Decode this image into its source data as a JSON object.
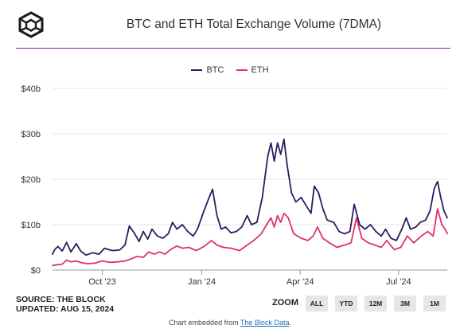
{
  "header": {
    "title": "BTC and ETH Total Exchange Volume (7DMA)",
    "logo_icon": "the-block-cube-logo"
  },
  "legend": {
    "items": [
      {
        "label": "BTC",
        "color": "#2d1b5e"
      },
      {
        "label": "ETH",
        "color": "#e0306e"
      }
    ]
  },
  "source": {
    "line1": "SOURCE: THE BLOCK",
    "line2": "UPDATED: AUG 15, 2024"
  },
  "zoom": {
    "label": "ZOOM",
    "buttons": [
      "ALL",
      "YTD",
      "12M",
      "3M",
      "1M"
    ]
  },
  "footer": {
    "prefix": "Chart embedded from ",
    "link": "The Block Data",
    "suffix": "."
  },
  "chart_data": {
    "type": "line",
    "title": "BTC and ETH Total Exchange Volume (7DMA)",
    "y_tick_labels": [
      "$0",
      "$10b",
      "$20b",
      "$30b",
      "$40b"
    ],
    "x_tick_labels": [
      "Oct '23",
      "Jan '24",
      "Apr '24",
      "Jul '24"
    ],
    "ylim": [
      0,
      40
    ],
    "grid": true,
    "legend_position": "top-center",
    "x_range": [
      "2023-08-16",
      "2024-08-15"
    ],
    "x_ticks": [
      "2023-10-01",
      "2024-01-01",
      "2024-04-01",
      "2024-07-01"
    ],
    "units": "billion USD",
    "series": [
      {
        "name": "BTC",
        "color": "#2d1b5e",
        "points": [
          [
            "2023-08-16",
            3.5
          ],
          [
            "2023-08-18",
            4.5
          ],
          [
            "2023-08-21",
            5.2
          ],
          [
            "2023-08-25",
            4.2
          ],
          [
            "2023-08-29",
            6.1
          ],
          [
            "2023-09-02",
            4.0
          ],
          [
            "2023-09-07",
            5.8
          ],
          [
            "2023-09-11",
            4.2
          ],
          [
            "2023-09-16",
            3.3
          ],
          [
            "2023-09-22",
            3.8
          ],
          [
            "2023-09-28",
            3.5
          ],
          [
            "2023-10-03",
            4.8
          ],
          [
            "2023-10-10",
            4.3
          ],
          [
            "2023-10-17",
            4.4
          ],
          [
            "2023-10-22",
            5.5
          ],
          [
            "2023-10-26",
            9.7
          ],
          [
            "2023-10-31",
            8.0
          ],
          [
            "2023-11-04",
            6.3
          ],
          [
            "2023-11-08",
            8.5
          ],
          [
            "2023-11-12",
            6.8
          ],
          [
            "2023-11-16",
            9.0
          ],
          [
            "2023-11-21",
            7.5
          ],
          [
            "2023-11-26",
            7.0
          ],
          [
            "2023-12-01",
            8.0
          ],
          [
            "2023-12-05",
            10.5
          ],
          [
            "2023-12-09",
            9.0
          ],
          [
            "2023-12-14",
            10.0
          ],
          [
            "2023-12-19",
            8.5
          ],
          [
            "2023-12-24",
            7.5
          ],
          [
            "2023-12-28",
            9.0
          ],
          [
            "2024-01-03",
            13.0
          ],
          [
            "2024-01-07",
            15.5
          ],
          [
            "2024-01-11",
            17.8
          ],
          [
            "2024-01-15",
            12.0
          ],
          [
            "2024-01-19",
            9.0
          ],
          [
            "2024-01-23",
            9.5
          ],
          [
            "2024-01-28",
            8.2
          ],
          [
            "2024-02-02",
            8.5
          ],
          [
            "2024-02-07",
            9.5
          ],
          [
            "2024-02-12",
            12.0
          ],
          [
            "2024-02-16",
            10.0
          ],
          [
            "2024-02-21",
            10.5
          ],
          [
            "2024-02-26",
            16.0
          ],
          [
            "2024-03-02",
            25.0
          ],
          [
            "2024-03-05",
            28.0
          ],
          [
            "2024-03-08",
            24.0
          ],
          [
            "2024-03-11",
            28.0
          ],
          [
            "2024-03-14",
            25.5
          ],
          [
            "2024-03-17",
            28.8
          ],
          [
            "2024-03-20",
            23.0
          ],
          [
            "2024-03-24",
            17.0
          ],
          [
            "2024-03-28",
            15.0
          ],
          [
            "2024-04-02",
            16.0
          ],
          [
            "2024-04-07",
            14.0
          ],
          [
            "2024-04-11",
            12.5
          ],
          [
            "2024-04-14",
            18.5
          ],
          [
            "2024-04-18",
            17.0
          ],
          [
            "2024-04-22",
            13.5
          ],
          [
            "2024-04-26",
            11.0
          ],
          [
            "2024-05-02",
            10.5
          ],
          [
            "2024-05-07",
            8.5
          ],
          [
            "2024-05-12",
            8.0
          ],
          [
            "2024-05-17",
            8.5
          ],
          [
            "2024-05-21",
            14.5
          ],
          [
            "2024-05-26",
            10.0
          ],
          [
            "2024-05-31",
            9.0
          ],
          [
            "2024-06-05",
            10.0
          ],
          [
            "2024-06-10",
            8.5
          ],
          [
            "2024-06-15",
            7.5
          ],
          [
            "2024-06-19",
            9.0
          ],
          [
            "2024-06-24",
            7.0
          ],
          [
            "2024-06-29",
            6.5
          ],
          [
            "2024-07-04",
            9.0
          ],
          [
            "2024-07-08",
            11.5
          ],
          [
            "2024-07-12",
            9.0
          ],
          [
            "2024-07-17",
            9.5
          ],
          [
            "2024-07-21",
            10.5
          ],
          [
            "2024-07-26",
            11.0
          ],
          [
            "2024-07-30",
            13.0
          ],
          [
            "2024-08-03",
            18.0
          ],
          [
            "2024-08-06",
            19.5
          ],
          [
            "2024-08-09",
            16.0
          ],
          [
            "2024-08-12",
            13.0
          ],
          [
            "2024-08-15",
            11.5
          ]
        ]
      },
      {
        "name": "ETH",
        "color": "#e0306e",
        "points": [
          [
            "2023-08-16",
            1.0
          ],
          [
            "2023-08-21",
            1.2
          ],
          [
            "2023-08-25",
            1.3
          ],
          [
            "2023-08-29",
            2.2
          ],
          [
            "2023-09-02",
            1.8
          ],
          [
            "2023-09-07",
            2.0
          ],
          [
            "2023-09-12",
            1.6
          ],
          [
            "2023-09-18",
            1.4
          ],
          [
            "2023-09-24",
            1.5
          ],
          [
            "2023-10-01",
            2.0
          ],
          [
            "2023-10-08",
            1.7
          ],
          [
            "2023-10-15",
            1.8
          ],
          [
            "2023-10-22",
            2.0
          ],
          [
            "2023-10-28",
            2.5
          ],
          [
            "2023-11-02",
            3.0
          ],
          [
            "2023-11-08",
            2.8
          ],
          [
            "2023-11-13",
            4.0
          ],
          [
            "2023-11-18",
            3.5
          ],
          [
            "2023-11-23",
            4.0
          ],
          [
            "2023-11-28",
            3.5
          ],
          [
            "2023-12-03",
            4.5
          ],
          [
            "2023-12-09",
            5.3
          ],
          [
            "2023-12-14",
            4.8
          ],
          [
            "2023-12-20",
            5.0
          ],
          [
            "2023-12-27",
            4.3
          ],
          [
            "2024-01-03",
            5.2
          ],
          [
            "2024-01-10",
            6.5
          ],
          [
            "2024-01-15",
            5.5
          ],
          [
            "2024-01-21",
            5.0
          ],
          [
            "2024-01-28",
            4.8
          ],
          [
            "2024-02-05",
            4.3
          ],
          [
            "2024-02-12",
            5.5
          ],
          [
            "2024-02-18",
            6.5
          ],
          [
            "2024-02-25",
            8.0
          ],
          [
            "2024-03-01",
            10.0
          ],
          [
            "2024-03-05",
            11.5
          ],
          [
            "2024-03-08",
            9.5
          ],
          [
            "2024-03-11",
            12.0
          ],
          [
            "2024-03-14",
            10.5
          ],
          [
            "2024-03-17",
            12.5
          ],
          [
            "2024-03-21",
            11.5
          ],
          [
            "2024-03-26",
            8.0
          ],
          [
            "2024-04-02",
            7.0
          ],
          [
            "2024-04-08",
            6.5
          ],
          [
            "2024-04-13",
            7.5
          ],
          [
            "2024-04-17",
            9.5
          ],
          [
            "2024-04-22",
            7.0
          ],
          [
            "2024-04-28",
            6.0
          ],
          [
            "2024-05-05",
            5.0
          ],
          [
            "2024-05-12",
            5.5
          ],
          [
            "2024-05-18",
            6.0
          ],
          [
            "2024-05-23",
            11.5
          ],
          [
            "2024-05-28",
            7.0
          ],
          [
            "2024-06-03",
            6.0
          ],
          [
            "2024-06-09",
            5.5
          ],
          [
            "2024-06-15",
            5.0
          ],
          [
            "2024-06-20",
            6.5
          ],
          [
            "2024-06-27",
            4.5
          ],
          [
            "2024-07-03",
            5.0
          ],
          [
            "2024-07-09",
            7.5
          ],
          [
            "2024-07-15",
            6.0
          ],
          [
            "2024-07-22",
            7.5
          ],
          [
            "2024-07-28",
            8.5
          ],
          [
            "2024-08-02",
            7.5
          ],
          [
            "2024-08-06",
            13.5
          ],
          [
            "2024-08-10",
            10.0
          ],
          [
            "2024-08-13",
            9.0
          ],
          [
            "2024-08-15",
            8.0
          ]
        ]
      }
    ]
  }
}
